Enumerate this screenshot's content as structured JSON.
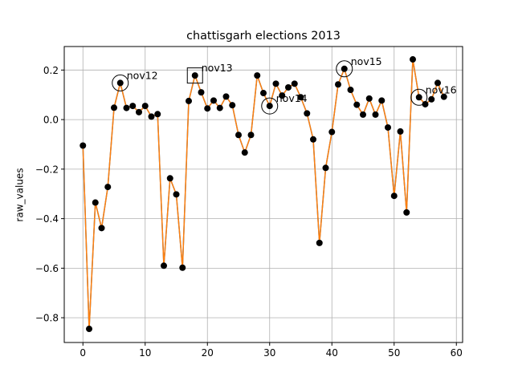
{
  "chart_data": {
    "type": "line",
    "title": "chattisgarh elections 2013",
    "xlabel": "",
    "ylabel": "raw_values",
    "xlim": [
      -3,
      61
    ],
    "ylim": [
      -0.9,
      0.295
    ],
    "xticks": [
      0,
      10,
      20,
      30,
      40,
      50,
      60
    ],
    "xtick_labels": [
      "0",
      "10",
      "20",
      "30",
      "40",
      "50",
      "60"
    ],
    "yticks": [
      -0.8,
      -0.6,
      -0.4,
      -0.2,
      0.0,
      0.2
    ],
    "ytick_labels": [
      "−0.8",
      "−0.6",
      "−0.4",
      "−0.2",
      "0.0",
      "0.2"
    ],
    "grid": true,
    "legend": "none",
    "colors": {
      "line_under": "#1f77b4",
      "line_over": "#ff7f0e",
      "marker": "#000000",
      "grid": "#b0b0b0",
      "axes": "#000000"
    },
    "series": [
      {
        "x": [
          0,
          1,
          2,
          3,
          4,
          5,
          6,
          7,
          8,
          9,
          10,
          11,
          12,
          13,
          14,
          15,
          16,
          17,
          18,
          19,
          20,
          21,
          22,
          23,
          24,
          25,
          26,
          27,
          28,
          29,
          30,
          31,
          32,
          33,
          34,
          35,
          36,
          37,
          38,
          39,
          40,
          41,
          42,
          43,
          44,
          45,
          46,
          47,
          48,
          49,
          50,
          51,
          52,
          53,
          54,
          55,
          56,
          57,
          58
        ],
        "values": [
          -0.105,
          -0.845,
          -0.335,
          -0.438,
          -0.272,
          0.048,
          0.148,
          0.047,
          0.055,
          0.03,
          0.055,
          0.012,
          0.022,
          -0.59,
          -0.237,
          -0.302,
          -0.598,
          0.075,
          0.178,
          0.11,
          0.045,
          0.077,
          0.047,
          0.093,
          0.058,
          -0.062,
          -0.133,
          -0.062,
          0.178,
          0.107,
          0.055,
          0.145,
          0.097,
          0.13,
          0.145,
          0.09,
          0.025,
          -0.08,
          -0.498,
          -0.195,
          -0.05,
          0.142,
          0.205,
          0.12,
          0.06,
          0.02,
          0.085,
          0.02,
          0.077,
          -0.032,
          -0.308,
          -0.048,
          -0.375,
          0.243,
          0.09,
          0.062,
          0.082,
          0.148,
          0.092
        ]
      }
    ],
    "annotations": [
      {
        "text": "nov12",
        "x": 6,
        "y": 0.148,
        "marker": "circle"
      },
      {
        "text": "nov13",
        "x": 18,
        "y": 0.178,
        "marker": "square"
      },
      {
        "text": "nov14",
        "x": 30,
        "y": 0.055,
        "marker": "circle"
      },
      {
        "text": "nov15",
        "x": 42,
        "y": 0.205,
        "marker": "circle"
      },
      {
        "text": "nov16",
        "x": 54,
        "y": 0.09,
        "marker": "circle"
      }
    ]
  }
}
